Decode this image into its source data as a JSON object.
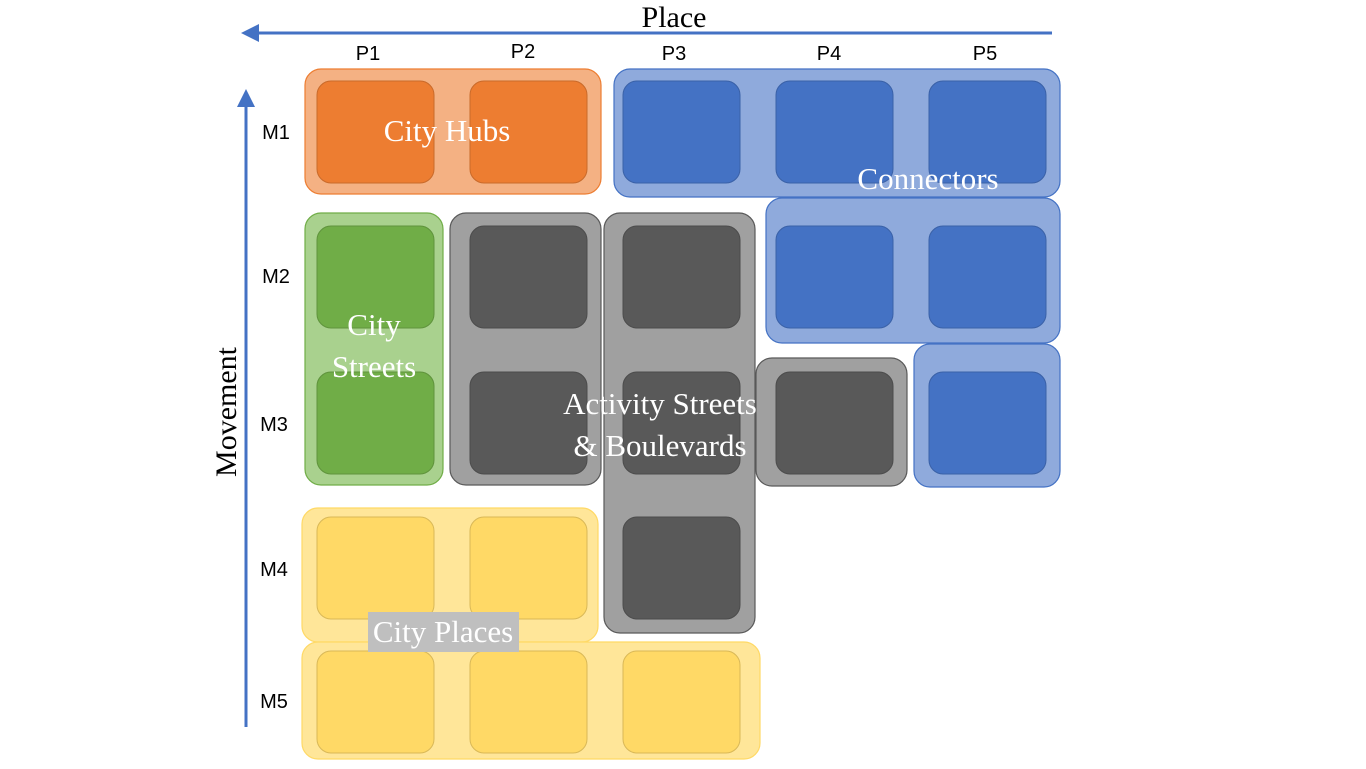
{
  "axes": {
    "place_title": "Place",
    "movement_title": "Movement",
    "place_ticks": [
      "P1",
      "P2",
      "P3",
      "P4",
      "P5"
    ],
    "movement_ticks": [
      "M1",
      "M2",
      "M3",
      "M4",
      "M5"
    ],
    "arrow_color": "#4472C4"
  },
  "groups": {
    "city_hubs": {
      "label": "City Hubs",
      "color": "#ED7D31",
      "tint": "#F4B183"
    },
    "connectors": {
      "label": "Connectors",
      "color": "#4472C4",
      "tint": "#8FAADC"
    },
    "city_streets": {
      "label_line1": "City",
      "label_line2": "Streets",
      "color": "#70AD47",
      "tint": "#A9D18E"
    },
    "activity_streets": {
      "label_line1": "Activity Streets",
      "label_line2": "& Boulevards",
      "color": "#595959",
      "tint": "#A0A0A0"
    },
    "city_places": {
      "label": "City Places",
      "color": "#FFD966",
      "tint": "#FFE699",
      "label_bg": "#BFBFBF"
    }
  },
  "cells": [
    {
      "group": "city_hubs",
      "place": "P1",
      "movement": "M1"
    },
    {
      "group": "city_hubs",
      "place": "P2",
      "movement": "M1"
    },
    {
      "group": "connectors",
      "place": "P3",
      "movement": "M1"
    },
    {
      "group": "connectors",
      "place": "P4",
      "movement": "M1"
    },
    {
      "group": "connectors",
      "place": "P5",
      "movement": "M1"
    },
    {
      "group": "connectors",
      "place": "P4",
      "movement": "M2"
    },
    {
      "group": "connectors",
      "place": "P5",
      "movement": "M2"
    },
    {
      "group": "connectors",
      "place": "P5",
      "movement": "M3"
    },
    {
      "group": "city_streets",
      "place": "P1",
      "movement": "M2"
    },
    {
      "group": "city_streets",
      "place": "P1",
      "movement": "M3"
    },
    {
      "group": "activity_streets",
      "place": "P2",
      "movement": "M2"
    },
    {
      "group": "activity_streets",
      "place": "P2",
      "movement": "M3"
    },
    {
      "group": "activity_streets",
      "place": "P3",
      "movement": "M2"
    },
    {
      "group": "activity_streets",
      "place": "P3",
      "movement": "M3"
    },
    {
      "group": "activity_streets",
      "place": "P3",
      "movement": "M4"
    },
    {
      "group": "activity_streets",
      "place": "P4",
      "movement": "M3"
    },
    {
      "group": "city_places",
      "place": "P1",
      "movement": "M4"
    },
    {
      "group": "city_places",
      "place": "P2",
      "movement": "M4"
    },
    {
      "group": "city_places",
      "place": "P1",
      "movement": "M5"
    },
    {
      "group": "city_places",
      "place": "P2",
      "movement": "M5"
    },
    {
      "group": "city_places",
      "place": "P3",
      "movement": "M5"
    }
  ]
}
